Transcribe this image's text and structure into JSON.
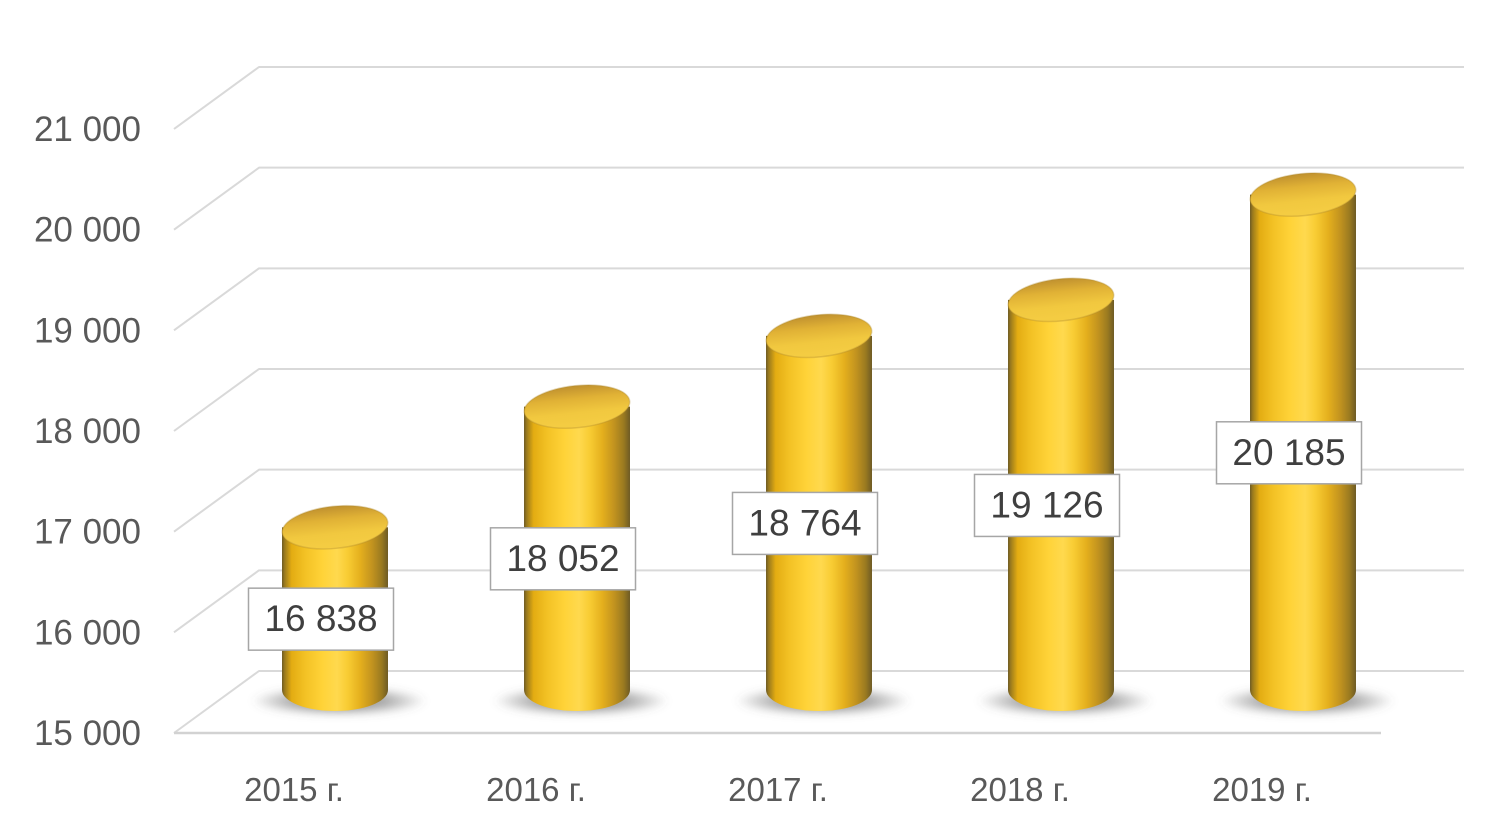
{
  "chart_data": {
    "type": "bar",
    "subtype": "3d-cylinder",
    "title": "",
    "legend": "none",
    "grid": true,
    "categories": [
      "2015 г.",
      "2016 г.",
      "2017 г.",
      "2018 г.",
      "2019 г."
    ],
    "values": [
      16838,
      18052,
      18764,
      19126,
      20185
    ],
    "data_labels": [
      "16 838",
      "18 052",
      "18 764",
      "19 126",
      "20 185"
    ],
    "y_axis": {
      "min": 15000,
      "max": 21000,
      "step": 1000,
      "tick_labels": [
        "15 000",
        "16 000",
        "17 000",
        "18 000",
        "19 000",
        "20 000",
        "21 000"
      ]
    },
    "xlabel": "",
    "ylabel": ""
  },
  "colors": {
    "background": "#ffffff",
    "gridline": "#d9d9d9",
    "axis_line": "#d2d2d2",
    "axis_text": "#595959",
    "data_label_text": "#3f3f3f",
    "data_label_border": "#a6a6a6",
    "data_label_fill": "#ffffff",
    "cylinder_edge_dark": "#6e5b25",
    "cylinder_dark": "#9a7a1d",
    "cylinder_mid": "#e3ac12",
    "cylinder_bright": "#ffd338",
    "cylinder_highlight": "#ffd94e",
    "cylinder_top_rim": "#c0912f",
    "cylinder_top_fill": "#f1c83f",
    "shadow": "#5a5a5a"
  }
}
